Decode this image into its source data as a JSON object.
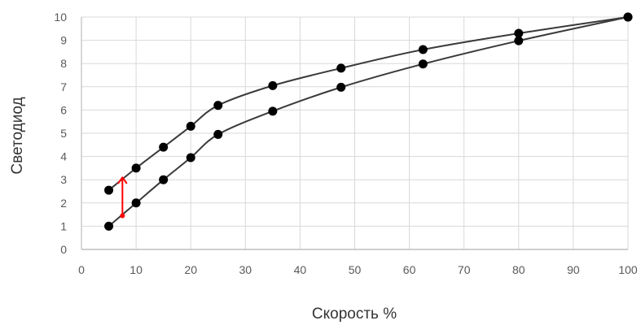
{
  "chart_data": {
    "type": "line",
    "xlabel": "Скорость %",
    "ylabel": "Светодиод",
    "xlim": [
      0,
      100
    ],
    "ylim": [
      0,
      10
    ],
    "x_ticks": [
      "0",
      "10",
      "20",
      "30",
      "40",
      "50",
      "60",
      "70",
      "80",
      "90",
      "100"
    ],
    "y_ticks": [
      "0",
      "1",
      "2",
      "3",
      "4",
      "5",
      "6",
      "7",
      "8",
      "9",
      "10"
    ],
    "grid": true,
    "legend": "none",
    "series": [
      {
        "points": [
          {
            "x": 5,
            "y": 2.55
          },
          {
            "x": 10,
            "y": 3.5
          },
          {
            "x": 15,
            "y": 4.4
          },
          {
            "x": 20,
            "y": 5.3
          },
          {
            "x": 25,
            "y": 6.2
          },
          {
            "x": 35,
            "y": 7.05
          },
          {
            "x": 47.5,
            "y": 7.8
          },
          {
            "x": 62.5,
            "y": 8.6
          },
          {
            "x": 80,
            "y": 9.3
          },
          {
            "x": 100,
            "y": 10
          }
        ],
        "color": "#3a3a3a"
      },
      {
        "points": [
          {
            "x": 5,
            "y": 1
          },
          {
            "x": 10,
            "y": 2
          },
          {
            "x": 15,
            "y": 3
          },
          {
            "x": 20,
            "y": 3.95
          },
          {
            "x": 25,
            "y": 4.95
          },
          {
            "x": 35,
            "y": 5.95
          },
          {
            "x": 47.5,
            "y": 6.98
          },
          {
            "x": 62.5,
            "y": 7.98
          },
          {
            "x": 80,
            "y": 8.98
          },
          {
            "x": 100,
            "y": 10
          }
        ],
        "color": "#3a3a3a"
      }
    ],
    "annotations": [
      {
        "type": "arrow",
        "from": {
          "x": 7.5,
          "y": 1.45
        },
        "to": {
          "x": 7.5,
          "y": 3.1
        },
        "color": "#ff0000"
      }
    ],
    "colors": {
      "grid": "#d9d9d9",
      "axis": "#bfbfbf",
      "marker": "#000000",
      "annotation": "#ff0000"
    }
  }
}
